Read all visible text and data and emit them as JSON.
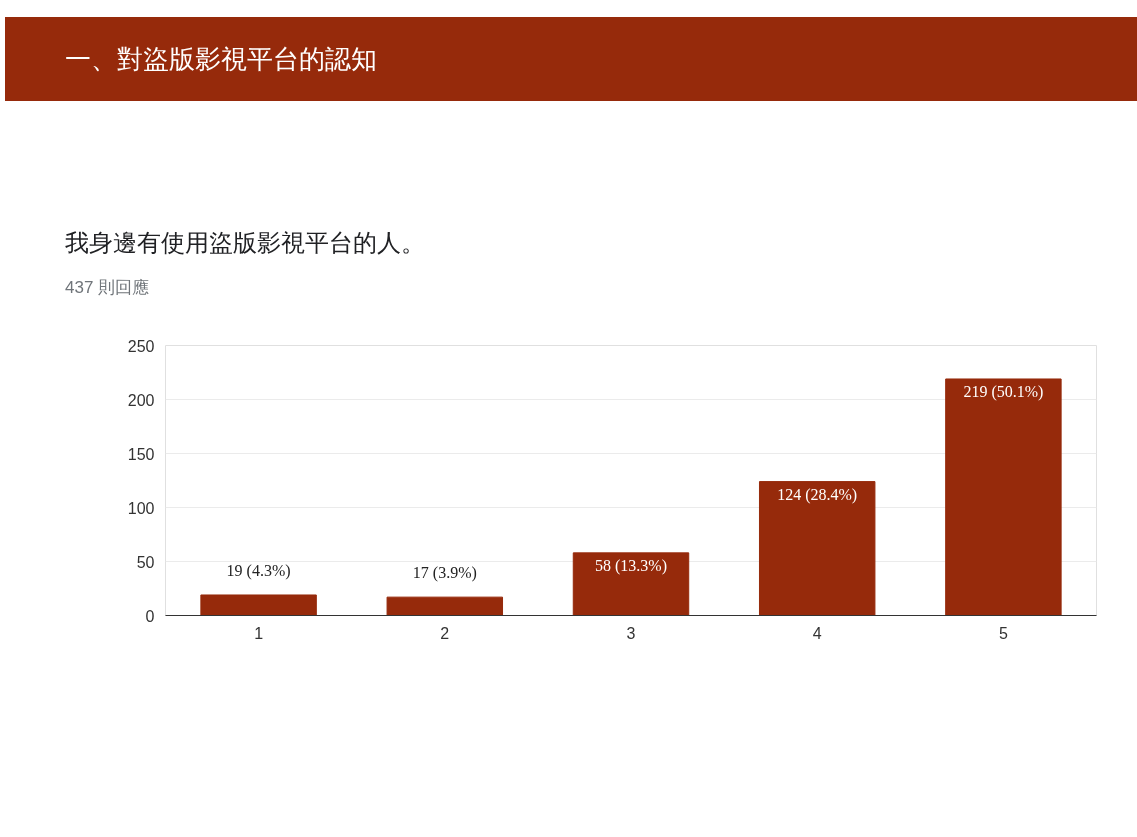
{
  "chart_data": {
    "type": "bar",
    "title": "一、對盜版影視平台的認知",
    "subtitle": "我身邊有使用盜版影視平台的人。",
    "annotations": [
      "437 則回應"
    ],
    "categories": [
      "1",
      "2",
      "3",
      "4",
      "5"
    ],
    "values": [
      19,
      17,
      58,
      124,
      219
    ],
    "value_labels": [
      "19 (4.3%)",
      "17 (3.9%)",
      "58 (13.3%)",
      "124 (28.4%)",
      "219 (50.1%)"
    ],
    "color": "#962a0b",
    "ylim": [
      0,
      250
    ],
    "yticks": [
      0,
      50,
      100,
      150,
      200,
      250
    ],
    "grid": "y"
  }
}
